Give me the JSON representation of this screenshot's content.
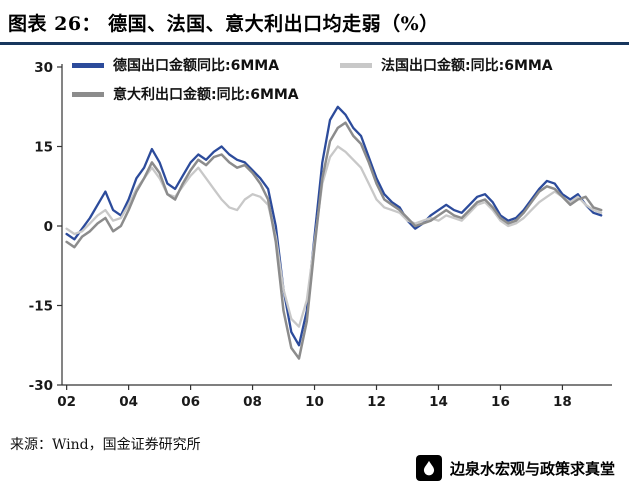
{
  "header": {
    "title": "图表 26：  德国、法国、意大利出口均走弱（%）"
  },
  "footer": {
    "source": "来源：Wind，国金证券研究所",
    "watermark": "边泉水宏观与政策求真堂"
  },
  "colors": {
    "title_rule": "#17365D",
    "axis": "#333333"
  },
  "chart_data": {
    "type": "line",
    "title": "",
    "xlabel": "",
    "ylabel": "",
    "grid": false,
    "legend_position": "top-left",
    "ylim": [
      -30,
      30
    ],
    "yticks": [
      30,
      15,
      0,
      -15,
      -30
    ],
    "xlim": [
      2001.85,
      2019.6
    ],
    "xticks": [
      2002,
      2004,
      2006,
      2008,
      2010,
      2012,
      2014,
      2016,
      2018
    ],
    "xtick_labels": [
      "02",
      "04",
      "06",
      "08",
      "10",
      "12",
      "14",
      "16",
      "18"
    ],
    "x": [
      2002.0,
      2002.25,
      2002.5,
      2002.75,
      2003.0,
      2003.25,
      2003.5,
      2003.75,
      2004.0,
      2004.25,
      2004.5,
      2004.75,
      2005.0,
      2005.25,
      2005.5,
      2005.75,
      2006.0,
      2006.25,
      2006.5,
      2006.75,
      2007.0,
      2007.25,
      2007.5,
      2007.75,
      2008.0,
      2008.25,
      2008.5,
      2008.75,
      2009.0,
      2009.25,
      2009.5,
      2009.75,
      2010.0,
      2010.25,
      2010.5,
      2010.75,
      2011.0,
      2011.25,
      2011.5,
      2011.75,
      2012.0,
      2012.25,
      2012.5,
      2012.75,
      2013.0,
      2013.25,
      2013.5,
      2013.75,
      2014.0,
      2014.25,
      2014.5,
      2014.75,
      2015.0,
      2015.25,
      2015.5,
      2015.75,
      2016.0,
      2016.25,
      2016.5,
      2016.75,
      2017.0,
      2017.25,
      2017.5,
      2017.75,
      2018.0,
      2018.25,
      2018.5,
      2018.75,
      2019.0,
      2019.25
    ],
    "series": [
      {
        "name": "德国出口金额同比:6MMA",
        "color": "#2C4B9B",
        "width": 2.3,
        "values": [
          -1.5,
          -2.5,
          -0.5,
          1.5,
          4,
          6.5,
          3,
          2,
          5,
          9,
          11,
          14.5,
          12,
          8,
          7,
          9.5,
          12,
          13.5,
          12.5,
          14,
          15,
          13.5,
          12.5,
          12,
          10.5,
          9,
          7,
          0,
          -12,
          -20,
          -22.5,
          -16,
          -2,
          12,
          20,
          22.5,
          21,
          18.5,
          17,
          13,
          9,
          6,
          4.5,
          3.5,
          1,
          -0.5,
          0.5,
          2,
          3,
          4,
          3,
          2.5,
          4,
          5.5,
          6,
          4.5,
          2,
          1,
          1.5,
          3,
          5,
          7,
          8.5,
          8,
          6,
          5,
          6,
          4,
          2.5,
          2
        ]
      },
      {
        "name": "法国出口金额:同比:6MMA",
        "color": "#C8C8C8",
        "width": 2.3,
        "values": [
          -0.5,
          -1.5,
          -1,
          0.5,
          2,
          3,
          1,
          1.5,
          4,
          7,
          9,
          11,
          9,
          6,
          5.5,
          7.5,
          9.5,
          11,
          9,
          7,
          5,
          3.5,
          3,
          5,
          6,
          5.5,
          4,
          -2,
          -12,
          -17.5,
          -19,
          -14,
          -3,
          8,
          13,
          15,
          14,
          12.5,
          11,
          8,
          5,
          3.5,
          3,
          2.5,
          1,
          0.5,
          1,
          1.5,
          1,
          2,
          1.5,
          1,
          2.5,
          4,
          4.5,
          3,
          1,
          0,
          0.5,
          1.5,
          3,
          4.5,
          5.5,
          6.5,
          5.5,
          4.5,
          5.5,
          4,
          3,
          2.5
        ]
      },
      {
        "name": "意大利出口金额:同比:6MMA",
        "color": "#8C8C8C",
        "width": 2.5,
        "values": [
          -3,
          -4,
          -2,
          -1,
          0.5,
          1.5,
          -1,
          0,
          3,
          6.5,
          9,
          12,
          10,
          6,
          5,
          8,
          10.5,
          12.5,
          11.5,
          13,
          13.5,
          12,
          11,
          11.5,
          10,
          8,
          5,
          -3,
          -16,
          -23,
          -25,
          -18,
          -4,
          9,
          16,
          18.5,
          19.5,
          17,
          15.5,
          12,
          8,
          5,
          4,
          3,
          1.5,
          0,
          0.5,
          1,
          2,
          3,
          2,
          1.5,
          3,
          4.5,
          5,
          3.5,
          1.5,
          0.5,
          1,
          2.5,
          4.5,
          6.5,
          7.5,
          7,
          5.5,
          4,
          5,
          5.5,
          3.5,
          3
        ]
      }
    ]
  }
}
